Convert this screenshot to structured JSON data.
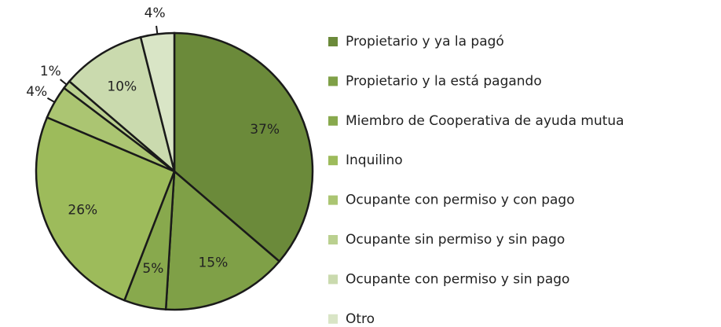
{
  "chart_data": {
    "type": "pie",
    "categories": [
      "Propietario y ya la pagó",
      "Propietario y la está pagando",
      "Miembro de Cooperativa de ayuda mutua",
      "Inquilino",
      "Ocupante con permiso y con pago",
      "Ocupante sin permiso y sin pago",
      "Ocupante con permiso y sin pago",
      "Otro"
    ],
    "values": [
      37,
      15,
      5,
      26,
      4,
      1,
      10,
      4
    ],
    "value_labels": [
      "37%",
      "15%",
      "5%",
      "26%",
      "4%",
      "1%",
      "10%",
      "4%"
    ],
    "colors": [
      "#6b8a3a",
      "#7fa047",
      "#88a94d",
      "#9dbb5b",
      "#abc572",
      "#bad08f",
      "#cadaae",
      "#d9e5c6"
    ],
    "legend": "right"
  }
}
